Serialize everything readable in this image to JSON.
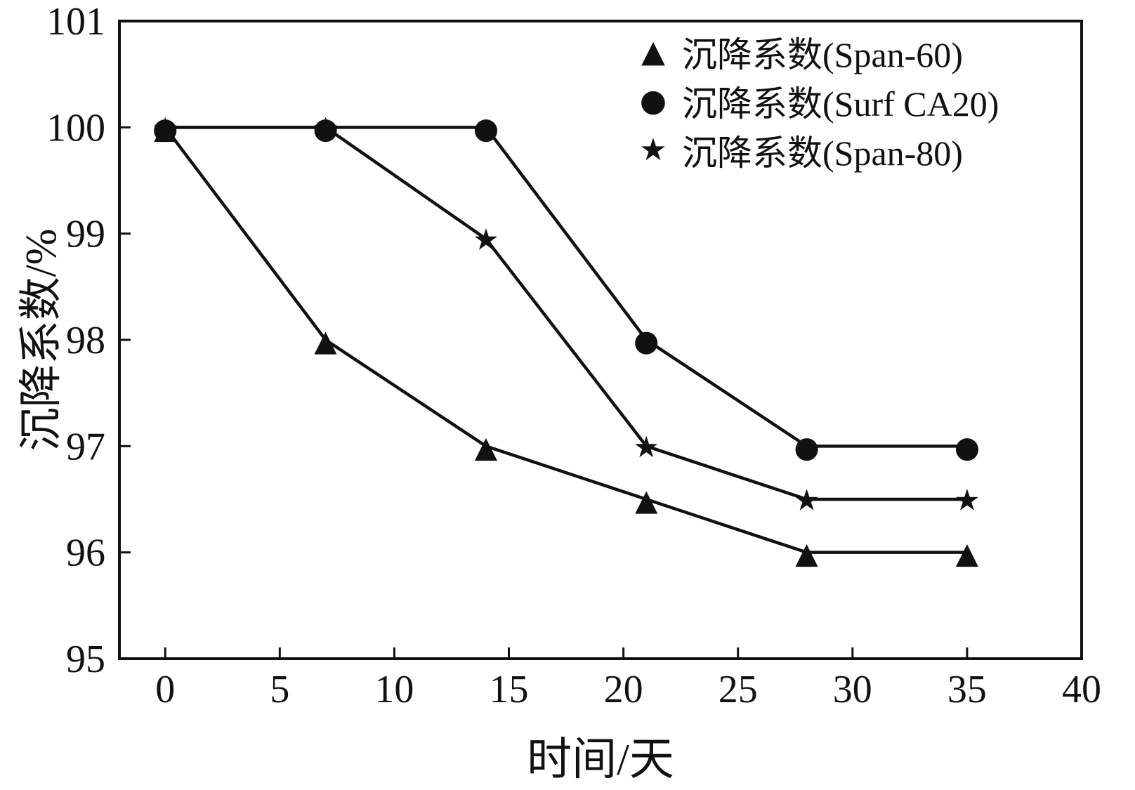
{
  "chart_data": {
    "type": "line",
    "title": "",
    "xlabel": "时间/天",
    "ylabel": "沉降系数/%",
    "x": [
      0,
      7,
      14,
      21,
      28,
      35
    ],
    "series": [
      {
        "name": "沉降系数(Span-60)",
        "marker": "triangle",
        "values": [
          100,
          98,
          97,
          96.5,
          96,
          96
        ]
      },
      {
        "name": "沉降系数(Surf CA20)",
        "marker": "circle",
        "values": [
          100,
          100,
          100,
          98,
          97,
          97
        ]
      },
      {
        "name": "沉降系数(Span-80)",
        "marker": "star",
        "values": [
          100,
          100,
          98.95,
          97,
          96.5,
          96.5
        ]
      }
    ],
    "xlim": [
      -2,
      40
    ],
    "ylim": [
      95,
      101
    ],
    "xticks": [
      0,
      5,
      10,
      15,
      20,
      25,
      30,
      35,
      40
    ],
    "yticks": [
      95,
      96,
      97,
      98,
      99,
      100,
      101
    ],
    "line_color": "#111111",
    "background_color": "#ffffff",
    "grid": "off",
    "legend_position": "top-right-inside"
  }
}
